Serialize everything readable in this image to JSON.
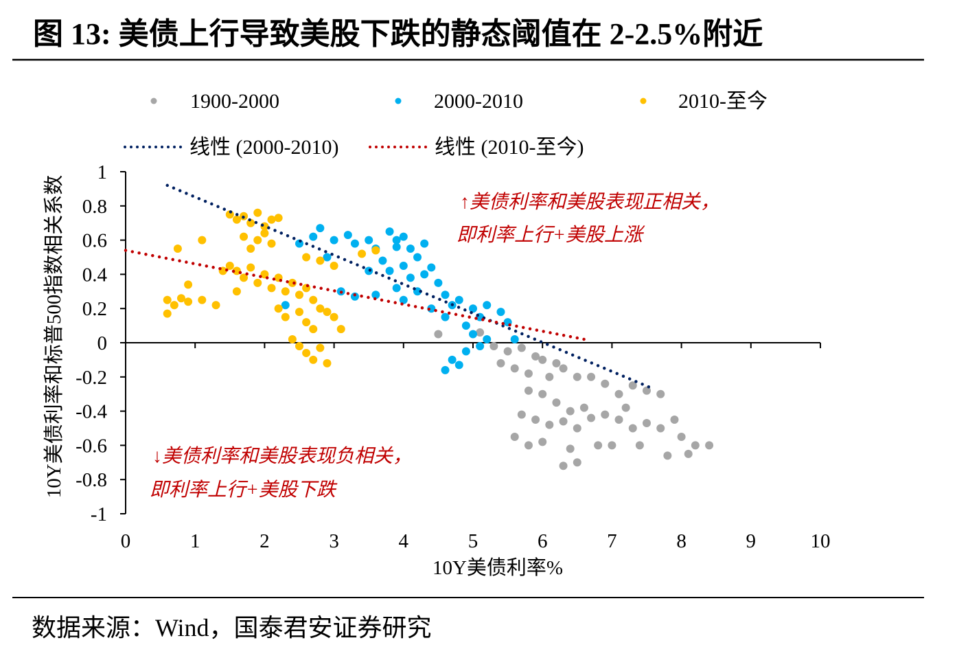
{
  "title": "图 13: 美债上行导致美股下跌的静态阈值在 2-2.5%附近",
  "source": "数据来源：Wind，国泰君安证券研究",
  "chart_data": {
    "type": "scatter",
    "title": "",
    "xlabel": "10Y美债利率%",
    "ylabel": "10Y美债利率和标普500指数相关系数",
    "xlim": [
      0,
      10
    ],
    "ylim": [
      -1,
      1
    ],
    "xticks": [
      "0",
      "1",
      "2",
      "3",
      "4",
      "5",
      "6",
      "7",
      "8",
      "9",
      "10"
    ],
    "yticks": [
      "1",
      "0.8",
      "0.6",
      "0.4",
      "0.2",
      "0",
      "-0.2",
      "-0.4",
      "-0.6",
      "-0.8",
      "-1"
    ],
    "grid": false,
    "legend_placement": "top",
    "series": [
      {
        "name": "1900-2000",
        "color": "#a6a6a6",
        "points": [
          [
            5.3,
            -0.02
          ],
          [
            5.5,
            -0.05
          ],
          [
            5.7,
            -0.03
          ],
          [
            5.9,
            -0.08
          ],
          [
            6.0,
            -0.1
          ],
          [
            6.2,
            -0.12
          ],
          [
            5.4,
            -0.12
          ],
          [
            5.6,
            -0.15
          ],
          [
            5.8,
            -0.18
          ],
          [
            6.1,
            -0.2
          ],
          [
            6.3,
            -0.15
          ],
          [
            6.5,
            -0.2
          ],
          [
            6.7,
            -0.2
          ],
          [
            6.9,
            -0.24
          ],
          [
            7.1,
            -0.3
          ],
          [
            7.3,
            -0.25
          ],
          [
            7.5,
            -0.28
          ],
          [
            7.7,
            -0.3
          ],
          [
            5.8,
            -0.28
          ],
          [
            6.0,
            -0.3
          ],
          [
            6.2,
            -0.35
          ],
          [
            6.4,
            -0.4
          ],
          [
            6.6,
            -0.38
          ],
          [
            5.7,
            -0.42
          ],
          [
            5.9,
            -0.45
          ],
          [
            6.1,
            -0.48
          ],
          [
            6.3,
            -0.46
          ],
          [
            6.5,
            -0.5
          ],
          [
            6.7,
            -0.44
          ],
          [
            6.9,
            -0.42
          ],
          [
            7.1,
            -0.45
          ],
          [
            7.3,
            -0.5
          ],
          [
            7.5,
            -0.47
          ],
          [
            7.7,
            -0.5
          ],
          [
            7.9,
            -0.45
          ],
          [
            8.0,
            -0.55
          ],
          [
            8.2,
            -0.6
          ],
          [
            8.4,
            -0.6
          ],
          [
            5.6,
            -0.55
          ],
          [
            5.8,
            -0.6
          ],
          [
            6.4,
            -0.62
          ],
          [
            6.5,
            -0.7
          ],
          [
            6.3,
            -0.72
          ],
          [
            6.8,
            -0.6
          ],
          [
            7.0,
            -0.6
          ],
          [
            7.4,
            -0.6
          ],
          [
            7.8,
            -0.66
          ],
          [
            8.1,
            -0.65
          ],
          [
            6.0,
            -0.58
          ],
          [
            7.2,
            -0.38
          ],
          [
            5.1,
            0.06
          ],
          [
            4.5,
            0.05
          ]
        ]
      },
      {
        "name": "2000-2010",
        "color": "#00b0f0",
        "points": [
          [
            2.5,
            0.58
          ],
          [
            2.7,
            0.62
          ],
          [
            2.8,
            0.67
          ],
          [
            3.0,
            0.6
          ],
          [
            3.2,
            0.63
          ],
          [
            3.3,
            0.58
          ],
          [
            3.5,
            0.6
          ],
          [
            3.6,
            0.55
          ],
          [
            3.8,
            0.65
          ],
          [
            3.9,
            0.6
          ],
          [
            4.0,
            0.62
          ],
          [
            4.1,
            0.55
          ],
          [
            4.2,
            0.5
          ],
          [
            3.7,
            0.48
          ],
          [
            3.8,
            0.42
          ],
          [
            4.0,
            0.45
          ],
          [
            4.1,
            0.38
          ],
          [
            4.3,
            0.4
          ],
          [
            4.4,
            0.44
          ],
          [
            4.5,
            0.35
          ],
          [
            3.9,
            0.32
          ],
          [
            4.2,
            0.3
          ],
          [
            4.0,
            0.25
          ],
          [
            3.6,
            0.28
          ],
          [
            3.3,
            0.27
          ],
          [
            3.1,
            0.3
          ],
          [
            2.9,
            0.5
          ],
          [
            4.6,
            0.28
          ],
          [
            4.7,
            0.22
          ],
          [
            4.8,
            0.25
          ],
          [
            5.0,
            0.2
          ],
          [
            5.1,
            0.15
          ],
          [
            5.2,
            0.22
          ],
          [
            5.4,
            0.18
          ],
          [
            5.5,
            0.12
          ],
          [
            4.9,
            0.1
          ],
          [
            5.0,
            0.05
          ],
          [
            5.2,
            0.02
          ],
          [
            5.6,
            0.02
          ],
          [
            4.4,
            0.2
          ],
          [
            4.6,
            0.15
          ],
          [
            4.7,
            -0.1
          ],
          [
            4.8,
            -0.13
          ],
          [
            4.6,
            -0.16
          ],
          [
            4.9,
            -0.05
          ],
          [
            5.1,
            -0.02
          ],
          [
            3.9,
            0.56
          ],
          [
            4.3,
            0.58
          ],
          [
            2.3,
            0.22
          ],
          [
            3.5,
            0.42
          ]
        ]
      },
      {
        "name": "2010-至今",
        "color": "#ffc000",
        "points": [
          [
            1.5,
            0.75
          ],
          [
            1.6,
            0.72
          ],
          [
            1.7,
            0.74
          ],
          [
            1.8,
            0.7
          ],
          [
            1.9,
            0.76
          ],
          [
            2.0,
            0.68
          ],
          [
            2.1,
            0.72
          ],
          [
            2.2,
            0.73
          ],
          [
            1.7,
            0.62
          ],
          [
            1.9,
            0.6
          ],
          [
            2.1,
            0.58
          ],
          [
            1.8,
            0.55
          ],
          [
            2.0,
            0.64
          ],
          [
            1.5,
            0.45
          ],
          [
            1.6,
            0.42
          ],
          [
            1.7,
            0.38
          ],
          [
            1.8,
            0.44
          ],
          [
            1.9,
            0.35
          ],
          [
            2.0,
            0.4
          ],
          [
            2.1,
            0.32
          ],
          [
            2.2,
            0.38
          ],
          [
            2.3,
            0.3
          ],
          [
            2.4,
            0.35
          ],
          [
            2.5,
            0.28
          ],
          [
            2.6,
            0.32
          ],
          [
            2.7,
            0.25
          ],
          [
            2.8,
            0.2
          ],
          [
            2.9,
            0.18
          ],
          [
            3.0,
            0.15
          ],
          [
            3.1,
            0.08
          ],
          [
            2.5,
            0.18
          ],
          [
            2.6,
            0.12
          ],
          [
            2.7,
            0.08
          ],
          [
            2.2,
            0.2
          ],
          [
            2.3,
            0.15
          ],
          [
            1.6,
            0.3
          ],
          [
            1.4,
            0.42
          ],
          [
            2.6,
            0.5
          ],
          [
            2.8,
            0.48
          ],
          [
            3.0,
            0.45
          ],
          [
            3.4,
            0.52
          ],
          [
            3.6,
            0.54
          ],
          [
            0.6,
            0.25
          ],
          [
            0.7,
            0.22
          ],
          [
            0.8,
            0.26
          ],
          [
            0.9,
            0.24
          ],
          [
            0.6,
            0.17
          ],
          [
            1.1,
            0.25
          ],
          [
            1.3,
            0.22
          ],
          [
            0.75,
            0.55
          ],
          [
            1.1,
            0.6
          ],
          [
            0.9,
            0.34
          ],
          [
            2.5,
            -0.02
          ],
          [
            2.6,
            -0.06
          ],
          [
            2.7,
            -0.1
          ],
          [
            2.9,
            -0.12
          ],
          [
            2.8,
            -0.03
          ],
          [
            2.4,
            0.02
          ]
        ]
      }
    ],
    "trendlines": [
      {
        "name": "线性 (2000-2010)",
        "color": "#002060",
        "from": [
          0.6,
          0.92
        ],
        "to": [
          7.6,
          -0.27
        ]
      },
      {
        "name": "线性 (2010-至今)",
        "color": "#c00000",
        "from": [
          0.0,
          0.54
        ],
        "to": [
          6.6,
          0.02
        ]
      }
    ],
    "annotations": [
      {
        "lines": [
          "↑美债利率和美股表现正相关，",
          "即利率上行+美股上涨"
        ],
        "color": "#c00000"
      },
      {
        "lines": [
          "↓美债利率和美股表现负相关，",
          "即利率上行+美股下跌"
        ],
        "color": "#c00000"
      }
    ]
  }
}
